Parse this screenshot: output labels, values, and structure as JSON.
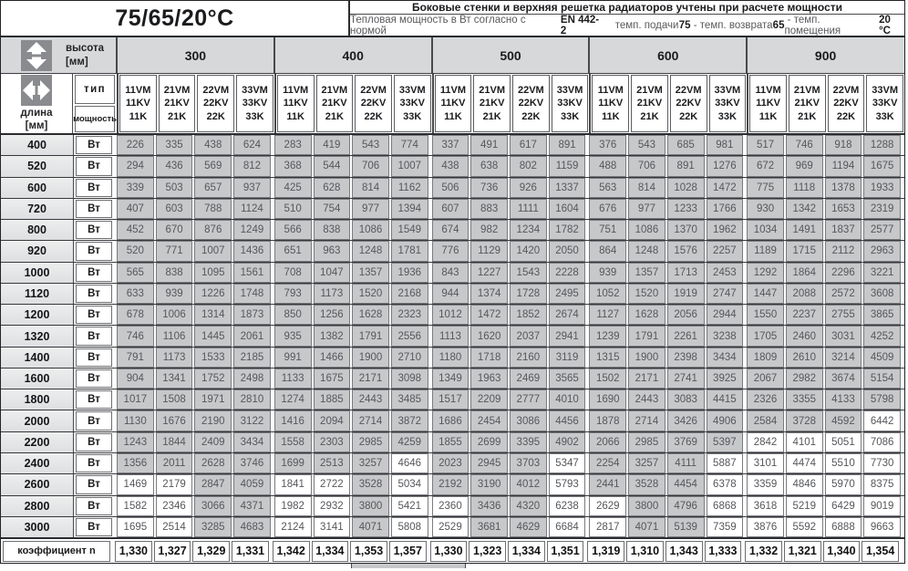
{
  "header": {
    "temp_regime": "75/65/20°C",
    "note_line1": "Боковые стенки и верхняя решетка радиаторов учтены при расчете мощности",
    "note_line2_parts": [
      {
        "text": "Тепловая мощность в Вт согласно с нормой ",
        "bold": false
      },
      {
        "text": "EN 442-2",
        "bold": true
      },
      {
        "text": "    темп. подачи ",
        "bold": false
      },
      {
        "text": "75",
        "bold": true
      },
      {
        "text": " - темп. возврата ",
        "bold": false
      },
      {
        "text": "65",
        "bold": true
      },
      {
        "text": " - темп. помещения ",
        "bold": false
      },
      {
        "text": "20 °C",
        "bold": true
      }
    ]
  },
  "axes": {
    "height_label": "высота",
    "height_unit": "[мм]",
    "length_label": "длина",
    "length_unit": "[мм]",
    "type_label": "тип",
    "power_label": "мощность",
    "watt_unit": "Вт"
  },
  "icons": {
    "height": "up-down-arrow-icon",
    "length": "left-right-arrow-icon"
  },
  "heights": [
    "300",
    "400",
    "500",
    "600",
    "900"
  ],
  "type_columns": [
    [
      "11VM",
      "11KV",
      "11K"
    ],
    [
      "21VM",
      "21KV",
      "21K"
    ],
    [
      "22VM",
      "22KV",
      "22K"
    ],
    [
      "33VM",
      "33KV",
      "33K"
    ]
  ],
  "rows": [
    {
      "length": "400",
      "values": [
        226,
        335,
        438,
        624,
        283,
        419,
        543,
        774,
        337,
        491,
        617,
        891,
        376,
        543,
        685,
        981,
        517,
        746,
        918,
        1288
      ],
      "white_cells": []
    },
    {
      "length": "520",
      "values": [
        294,
        436,
        569,
        812,
        368,
        544,
        706,
        1007,
        438,
        638,
        802,
        1159,
        488,
        706,
        891,
        1276,
        672,
        969,
        1194,
        1675
      ],
      "white_cells": []
    },
    {
      "length": "600",
      "values": [
        339,
        503,
        657,
        937,
        425,
        628,
        814,
        1162,
        506,
        736,
        926,
        1337,
        563,
        814,
        1028,
        1472,
        775,
        1118,
        1378,
        1933
      ],
      "white_cells": []
    },
    {
      "length": "720",
      "values": [
        407,
        603,
        788,
        1124,
        510,
        754,
        977,
        1394,
        607,
        883,
        1111,
        1604,
        676,
        977,
        1233,
        1766,
        930,
        1342,
        1653,
        2319
      ],
      "white_cells": []
    },
    {
      "length": "800",
      "values": [
        452,
        670,
        876,
        1249,
        566,
        838,
        1086,
        1549,
        674,
        982,
        1234,
        1782,
        751,
        1086,
        1370,
        1962,
        1034,
        1491,
        1837,
        2577
      ],
      "white_cells": []
    },
    {
      "length": "920",
      "values": [
        520,
        771,
        1007,
        1436,
        651,
        963,
        1248,
        1781,
        776,
        1129,
        1420,
        2050,
        864,
        1248,
        1576,
        2257,
        1189,
        1715,
        2112,
        2963
      ],
      "white_cells": []
    },
    {
      "length": "1000",
      "values": [
        565,
        838,
        1095,
        1561,
        708,
        1047,
        1357,
        1936,
        843,
        1227,
        1543,
        2228,
        939,
        1357,
        1713,
        2453,
        1292,
        1864,
        2296,
        3221
      ],
      "white_cells": []
    },
    {
      "length": "1120",
      "values": [
        633,
        939,
        1226,
        1748,
        793,
        1173,
        1520,
        2168,
        944,
        1374,
        1728,
        2495,
        1052,
        1520,
        1919,
        2747,
        1447,
        2088,
        2572,
        3608
      ],
      "white_cells": []
    },
    {
      "length": "1200",
      "values": [
        678,
        1006,
        1314,
        1873,
        850,
        1256,
        1628,
        2323,
        1012,
        1472,
        1852,
        2674,
        1127,
        1628,
        2056,
        2944,
        1550,
        2237,
        2755,
        3865
      ],
      "white_cells": []
    },
    {
      "length": "1320",
      "values": [
        746,
        1106,
        1445,
        2061,
        935,
        1382,
        1791,
        2556,
        1113,
        1620,
        2037,
        2941,
        1239,
        1791,
        2261,
        3238,
        1705,
        2460,
        3031,
        4252
      ],
      "white_cells": []
    },
    {
      "length": "1400",
      "values": [
        791,
        1173,
        1533,
        2185,
        991,
        1466,
        1900,
        2710,
        1180,
        1718,
        2160,
        3119,
        1315,
        1900,
        2398,
        3434,
        1809,
        2610,
        3214,
        4509
      ],
      "white_cells": []
    },
    {
      "length": "1600",
      "values": [
        904,
        1341,
        1752,
        2498,
        1133,
        1675,
        2171,
        3098,
        1349,
        1963,
        2469,
        3565,
        1502,
        2171,
        2741,
        3925,
        2067,
        2982,
        3674,
        5154
      ],
      "white_cells": []
    },
    {
      "length": "1800",
      "values": [
        1017,
        1508,
        1971,
        2810,
        1274,
        1885,
        2443,
        3485,
        1517,
        2209,
        2777,
        4010,
        1690,
        2443,
        3083,
        4415,
        2326,
        3355,
        4133,
        5798
      ],
      "white_cells": []
    },
    {
      "length": "2000",
      "values": [
        1130,
        1676,
        2190,
        3122,
        1416,
        2094,
        2714,
        3872,
        1686,
        2454,
        3086,
        4456,
        1878,
        2714,
        3426,
        4906,
        2584,
        3728,
        4592,
        6442
      ],
      "white_cells": [
        19
      ]
    },
    {
      "length": "2200",
      "values": [
        1243,
        1844,
        2409,
        3434,
        1558,
        2303,
        2985,
        4259,
        1855,
        2699,
        3395,
        4902,
        2066,
        2985,
        3769,
        5397,
        2842,
        4101,
        5051,
        7086
      ],
      "white_cells": [
        16,
        17,
        18,
        19
      ]
    },
    {
      "length": "2400",
      "values": [
        1356,
        2011,
        2628,
        3746,
        1699,
        2513,
        3257,
        4646,
        2023,
        2945,
        3703,
        5347,
        2254,
        3257,
        4111,
        5887,
        3101,
        4474,
        5510,
        7730
      ],
      "white_cells": [
        7,
        11,
        15,
        16,
        17,
        18,
        19
      ]
    },
    {
      "length": "2600",
      "values": [
        1469,
        2179,
        2847,
        4059,
        1841,
        2722,
        3528,
        5034,
        2192,
        3190,
        4012,
        5793,
        2441,
        3528,
        4454,
        6378,
        3359,
        4846,
        5970,
        8375
      ],
      "white_cells": [
        0,
        1,
        4,
        5,
        7,
        11,
        15,
        16,
        17,
        18,
        19
      ]
    },
    {
      "length": "2800",
      "values": [
        1582,
        2346,
        3066,
        4371,
        1982,
        2932,
        3800,
        5421,
        2360,
        3436,
        4320,
        6238,
        2629,
        3800,
        4796,
        6868,
        3618,
        5219,
        6429,
        9019
      ],
      "white_cells": [
        0,
        1,
        4,
        5,
        7,
        8,
        11,
        12,
        15,
        16,
        17,
        18,
        19
      ]
    },
    {
      "length": "3000",
      "values": [
        1695,
        2514,
        3285,
        4683,
        2124,
        3141,
        4071,
        5808,
        2529,
        3681,
        4629,
        6684,
        2817,
        4071,
        5139,
        7359,
        3876,
        5592,
        6888,
        9663
      ],
      "white_cells": [
        0,
        1,
        4,
        5,
        7,
        8,
        11,
        12,
        15,
        16,
        17,
        18,
        19
      ]
    }
  ],
  "coefficient_row": {
    "label": "коэффициент n",
    "values": [
      "1,330",
      "1,327",
      "1,329",
      "1,331",
      "1,342",
      "1,334",
      "1,353",
      "1,357",
      "1,330",
      "1,323",
      "1,334",
      "1,351",
      "1,319",
      "1,310",
      "1,343",
      "1,333",
      "1,332",
      "1,321",
      "1,340",
      "1,354"
    ]
  },
  "colors": {
    "cell_gray": "#c6c8ca",
    "cell_white": "#ffffff",
    "header_gray": "#d7d8da",
    "icon_gray": "#8a8b8e",
    "text_muted": "#56575b",
    "line_dark": "#2b2c2f"
  }
}
